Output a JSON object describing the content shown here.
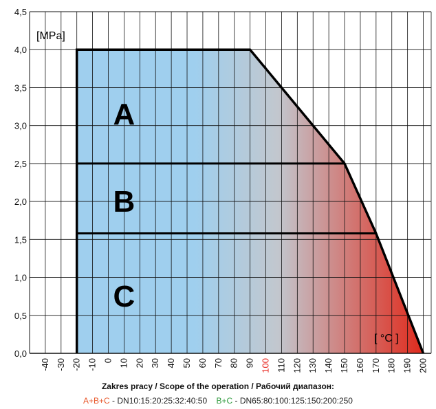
{
  "chart_data": {
    "type": "area",
    "ylabel": "[MPa]",
    "xlabel": "[ °C ]",
    "xlim": [
      -50,
      205
    ],
    "ylim": [
      0,
      4.5
    ],
    "x_ticks": [
      "-40",
      "-30",
      "-20",
      "-10",
      "0",
      "10",
      "20",
      "30",
      "40",
      "50",
      "60",
      "70",
      "80",
      "90",
      "100",
      "110",
      "120",
      "130",
      "140",
      "150",
      "160",
      "170",
      "180",
      "190",
      "200"
    ],
    "y_ticks": [
      "0,0",
      "0,5",
      "1,0",
      "1,5",
      "2,0",
      "2,5",
      "3,0",
      "3,5",
      "4,0",
      "4,5"
    ],
    "highlight_tick": "100",
    "highlight_color": "#e8231b",
    "envelope": [
      {
        "x": -20,
        "y": 0
      },
      {
        "x": -20,
        "y": 4.0
      },
      {
        "x": 90,
        "y": 4.0
      },
      {
        "x": 150,
        "y": 2.5
      },
      {
        "x": 170,
        "y": 1.58
      },
      {
        "x": 200,
        "y": 0
      }
    ],
    "band_limits": [
      {
        "name": "A",
        "x": [
          -20,
          150
        ],
        "y": 2.5
      },
      {
        "name": "B",
        "x": [
          -20,
          170
        ],
        "y": 1.58
      }
    ],
    "regions": [
      {
        "label": "A",
        "x": 10,
        "y": 3.15
      },
      {
        "label": "B",
        "x": 10,
        "y": 2.0
      },
      {
        "label": "C",
        "x": 10,
        "y": 0.75
      }
    ],
    "gradient": {
      "cold": "#9fcfee",
      "mid": "#c2c7ce",
      "hot": "#e02a1c"
    },
    "grid": true
  },
  "caption": {
    "title": "Zakres pracy / Scope of the operation / Рабочий диапазон:",
    "abc_label": "A+B+C",
    "abc_sizes": " - DN10:15:20:25:32:40:50",
    "bc_label": "B+C",
    "bc_sizes": " - DN65:80:100:125:150:200:250"
  }
}
